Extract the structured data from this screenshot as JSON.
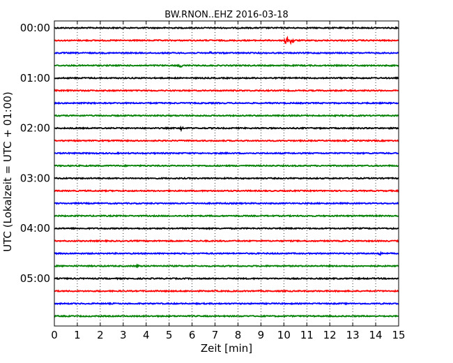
{
  "chart_data": {
    "type": "line",
    "title": "BW.RNON..EHZ 2016-03-18",
    "xlabel": "Zeit  [min]",
    "ylabel": "UTC (Lokalzeit = UTC + 01:00)",
    "xlim": [
      0,
      15
    ],
    "x_ticks": [
      "0",
      "1",
      "2",
      "3",
      "4",
      "5",
      "6",
      "7",
      "8",
      "9",
      "10",
      "11",
      "12",
      "13",
      "14",
      "15"
    ],
    "y_ticks": [
      "00:00",
      "01:00",
      "02:00",
      "03:00",
      "04:00",
      "05:00"
    ],
    "y_tick_hours": [
      0,
      1,
      2,
      3,
      4,
      5
    ],
    "grid": {
      "x": true,
      "style": "dotted"
    },
    "trace_minutes": 15,
    "trace_colors": [
      "#000000",
      "#ff0000",
      "#0000ff",
      "#008000"
    ],
    "series": [
      {
        "start": "00:00",
        "events": []
      },
      {
        "start": "00:15",
        "events": [
          {
            "minute": 10.1,
            "amplitude": 1.0
          },
          {
            "minute": 10.35,
            "amplitude": 1.1
          }
        ]
      },
      {
        "start": "00:30",
        "events": [
          {
            "minute": 6.8,
            "amplitude": 0.3
          }
        ]
      },
      {
        "start": "00:45",
        "events": [
          {
            "minute": 5.5,
            "amplitude": 0.35
          }
        ]
      },
      {
        "start": "01:00",
        "events": []
      },
      {
        "start": "01:15",
        "events": []
      },
      {
        "start": "01:30",
        "events": []
      },
      {
        "start": "01:45",
        "events": []
      },
      {
        "start": "02:00",
        "events": [
          {
            "minute": 5.55,
            "amplitude": 0.45
          }
        ]
      },
      {
        "start": "02:15",
        "events": []
      },
      {
        "start": "02:30",
        "events": []
      },
      {
        "start": "02:45",
        "events": []
      },
      {
        "start": "03:00",
        "events": []
      },
      {
        "start": "03:15",
        "events": []
      },
      {
        "start": "03:30",
        "events": []
      },
      {
        "start": "03:45",
        "events": []
      },
      {
        "start": "04:00",
        "events": []
      },
      {
        "start": "04:15",
        "events": []
      },
      {
        "start": "04:30",
        "events": [
          {
            "minute": 14.2,
            "amplitude": 0.3
          }
        ]
      },
      {
        "start": "04:45",
        "events": [
          {
            "minute": 3.6,
            "amplitude": 0.2
          }
        ]
      },
      {
        "start": "05:00",
        "events": []
      },
      {
        "start": "05:15",
        "events": []
      },
      {
        "start": "05:30",
        "events": []
      },
      {
        "start": "05:45",
        "events": []
      }
    ]
  }
}
